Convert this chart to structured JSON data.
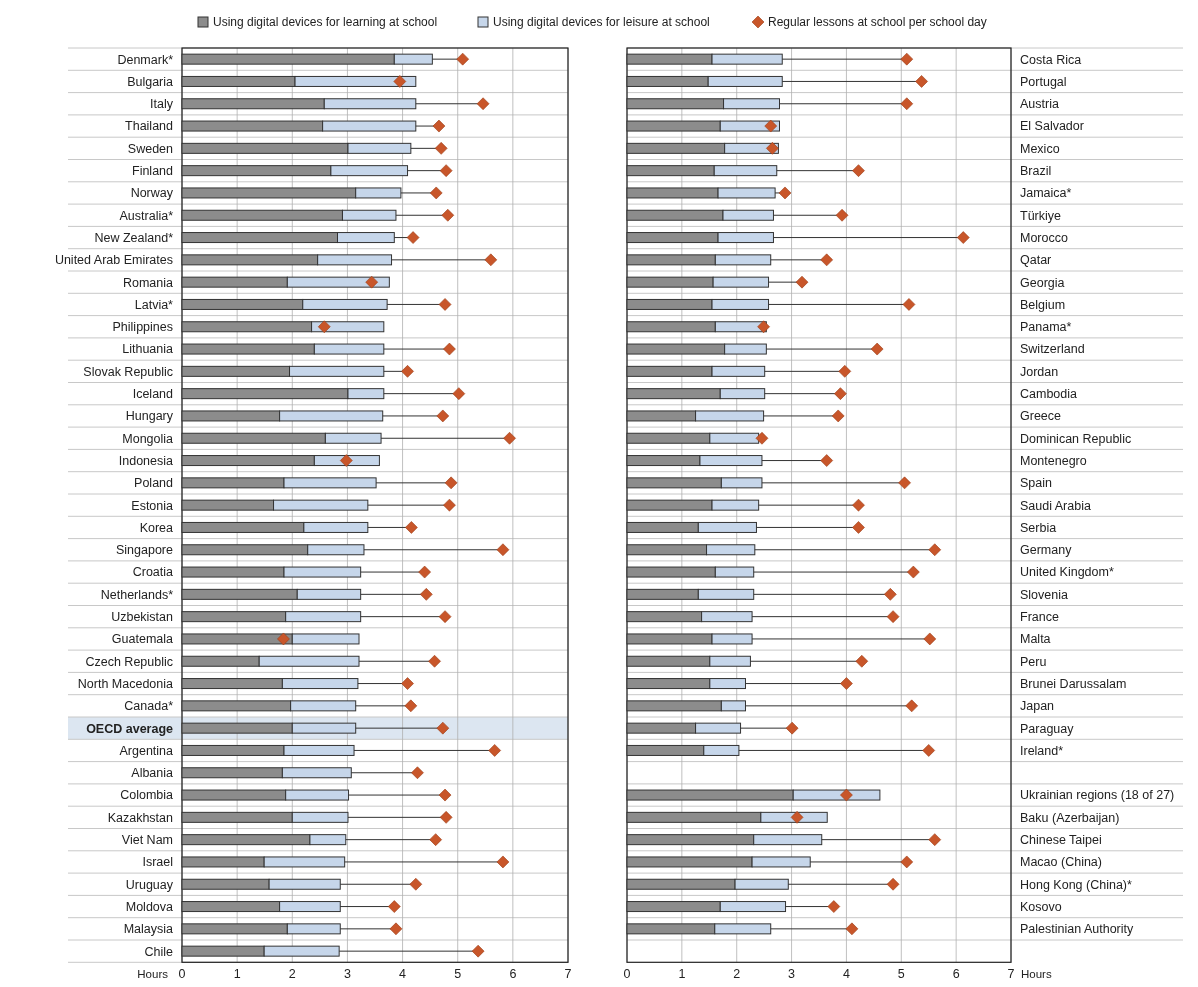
{
  "chart_data": [
    {
      "type": "bar",
      "orientation": "horizontal",
      "stacked": true,
      "legend": "top",
      "grid": true,
      "xlabel": "Hours",
      "xlim": [
        0,
        7
      ],
      "xticks": [
        0,
        1,
        2,
        3,
        4,
        5,
        6,
        7
      ],
      "categories": [
        "Denmark*",
        "Bulgaria",
        "Italy",
        "Thailand",
        "Sweden",
        "Finland",
        "Norway",
        "Australia*",
        "New Zealand*",
        "United Arab Emirates",
        "Romania",
        "Latvia*",
        "Philippines",
        "Lithuania",
        "Slovak Republic",
        "Iceland",
        "Hungary",
        "Mongolia",
        "Indonesia",
        "Poland",
        "Estonia",
        "Korea",
        "Singapore",
        "Croatia",
        "Netherlands*",
        "Uzbekistan",
        "Guatemala",
        "Czech Republic",
        "North Macedonia",
        "Canada*",
        "OECD average",
        "Argentina",
        "Albania",
        "Colombia",
        "Kazakhstan",
        "Viet Nam",
        "Israel",
        "Uruguay",
        "Moldova",
        "Malaysia",
        "Chile"
      ],
      "bands": [
        {
          "axis": "y",
          "from": "OECD average",
          "to": "OECD average",
          "color": "#dce6f1"
        }
      ],
      "series": [
        {
          "name": "Using digital devices for learning at school",
          "type": "bar",
          "color": "#8c8c8c",
          "values": [
            3.85,
            2.05,
            2.58,
            2.55,
            3.01,
            2.7,
            3.15,
            2.91,
            2.82,
            2.46,
            1.91,
            2.19,
            2.35,
            2.4,
            1.95,
            3.01,
            1.77,
            2.6,
            2.4,
            1.85,
            1.66,
            2.21,
            2.28,
            1.85,
            2.09,
            1.88,
            2.0,
            1.4,
            1.82,
            1.97,
            2.0,
            1.85,
            1.82,
            1.88,
            2.0,
            2.32,
            1.49,
            1.58,
            1.77,
            1.91,
            1.49
          ]
        },
        {
          "name": "Using digital devices for leisure at school",
          "type": "bar",
          "color": "#c6d6ea",
          "values": [
            0.69,
            2.19,
            1.66,
            1.69,
            1.14,
            1.39,
            0.82,
            0.97,
            1.03,
            1.34,
            1.85,
            1.53,
            1.31,
            1.26,
            1.71,
            0.65,
            1.87,
            1.01,
            1.18,
            1.67,
            1.71,
            1.16,
            1.02,
            1.39,
            1.15,
            1.36,
            1.21,
            1.81,
            1.37,
            1.18,
            1.15,
            1.27,
            1.25,
            1.14,
            1.01,
            0.65,
            1.46,
            1.29,
            1.1,
            0.96,
            1.36
          ]
        },
        {
          "name": "Regular lessons at school per school day",
          "type": "lollipop",
          "marker": "diamond",
          "color": "#c8562a",
          "values": [
            5.09,
            3.95,
            5.46,
            4.66,
            4.7,
            4.79,
            4.61,
            4.82,
            4.19,
            5.6,
            3.44,
            4.77,
            2.58,
            4.85,
            4.09,
            5.02,
            4.73,
            5.94,
            2.98,
            4.88,
            4.85,
            4.16,
            5.82,
            4.4,
            4.43,
            4.77,
            1.84,
            4.58,
            4.09,
            4.15,
            4.73,
            5.67,
            4.27,
            4.77,
            4.79,
            4.6,
            5.82,
            4.24,
            3.85,
            3.88,
            5.37
          ]
        }
      ]
    },
    {
      "type": "bar",
      "orientation": "horizontal",
      "stacked": true,
      "grid": true,
      "xlabel": "Hours",
      "xlim": [
        0,
        7
      ],
      "xticks": [
        0,
        1,
        2,
        3,
        4,
        5,
        6,
        7
      ],
      "categories": [
        "Costa Rica",
        "Portugal",
        "Austria",
        "El Salvador",
        "Mexico",
        "Brazil",
        "Jamaica*",
        "Türkiye",
        "Morocco",
        "Qatar",
        "Georgia",
        "Belgium",
        "Panama*",
        "Switzerland",
        "Jordan",
        "Cambodia",
        "Greece",
        "Dominican Republic",
        "Montenegro",
        "Spain",
        "Saudi Arabia",
        "Serbia",
        "Germany",
        "United Kingdom*",
        "Slovenia",
        "France",
        "Malta",
        "Peru",
        "Brunei Darussalam",
        "Japan",
        "Paraguay",
        "Ireland*",
        null,
        "Ukrainian regions (18 of 27)",
        "Baku (Azerbaijan)",
        "Chinese Taipei",
        "Macao (China)",
        "Hong Kong (China)*",
        "Kosovo",
        "Palestinian Authority"
      ],
      "series": [
        {
          "type": "bar",
          "color": "#8c8c8c",
          "values": [
            1.55,
            1.48,
            1.76,
            1.7,
            1.78,
            1.59,
            1.66,
            1.75,
            1.66,
            1.61,
            1.57,
            1.55,
            1.61,
            1.78,
            1.55,
            1.7,
            1.25,
            1.51,
            1.33,
            1.72,
            1.55,
            1.3,
            1.45,
            1.61,
            1.3,
            1.36,
            1.55,
            1.51,
            1.51,
            1.72,
            1.25,
            1.4,
            null,
            3.03,
            2.44,
            2.31,
            2.28,
            1.97,
            1.7,
            1.6
          ]
        },
        {
          "type": "bar",
          "color": "#c6d6ea",
          "values": [
            1.28,
            1.35,
            1.02,
            1.08,
            0.98,
            1.14,
            1.04,
            0.92,
            1.01,
            1.01,
            1.01,
            1.03,
            0.93,
            0.76,
            0.96,
            0.81,
            1.24,
            0.89,
            1.13,
            0.74,
            0.85,
            1.06,
            0.88,
            0.7,
            1.01,
            0.92,
            0.73,
            0.74,
            0.65,
            0.44,
            0.82,
            0.64,
            null,
            1.58,
            1.21,
            1.24,
            1.06,
            0.97,
            1.19,
            1.02
          ]
        },
        {
          "type": "lollipop",
          "marker": "diamond",
          "color": "#c8562a",
          "values": [
            5.1,
            5.37,
            5.1,
            2.62,
            2.65,
            4.22,
            2.88,
            3.92,
            6.13,
            3.64,
            3.19,
            5.14,
            2.49,
            4.56,
            3.97,
            3.89,
            3.85,
            2.46,
            3.64,
            5.06,
            4.22,
            4.22,
            5.61,
            5.22,
            4.8,
            4.85,
            5.52,
            4.28,
            4.0,
            5.19,
            3.01,
            5.5,
            null,
            4.0,
            3.1,
            5.61,
            5.1,
            4.85,
            3.77,
            4.1
          ]
        }
      ]
    }
  ]
}
